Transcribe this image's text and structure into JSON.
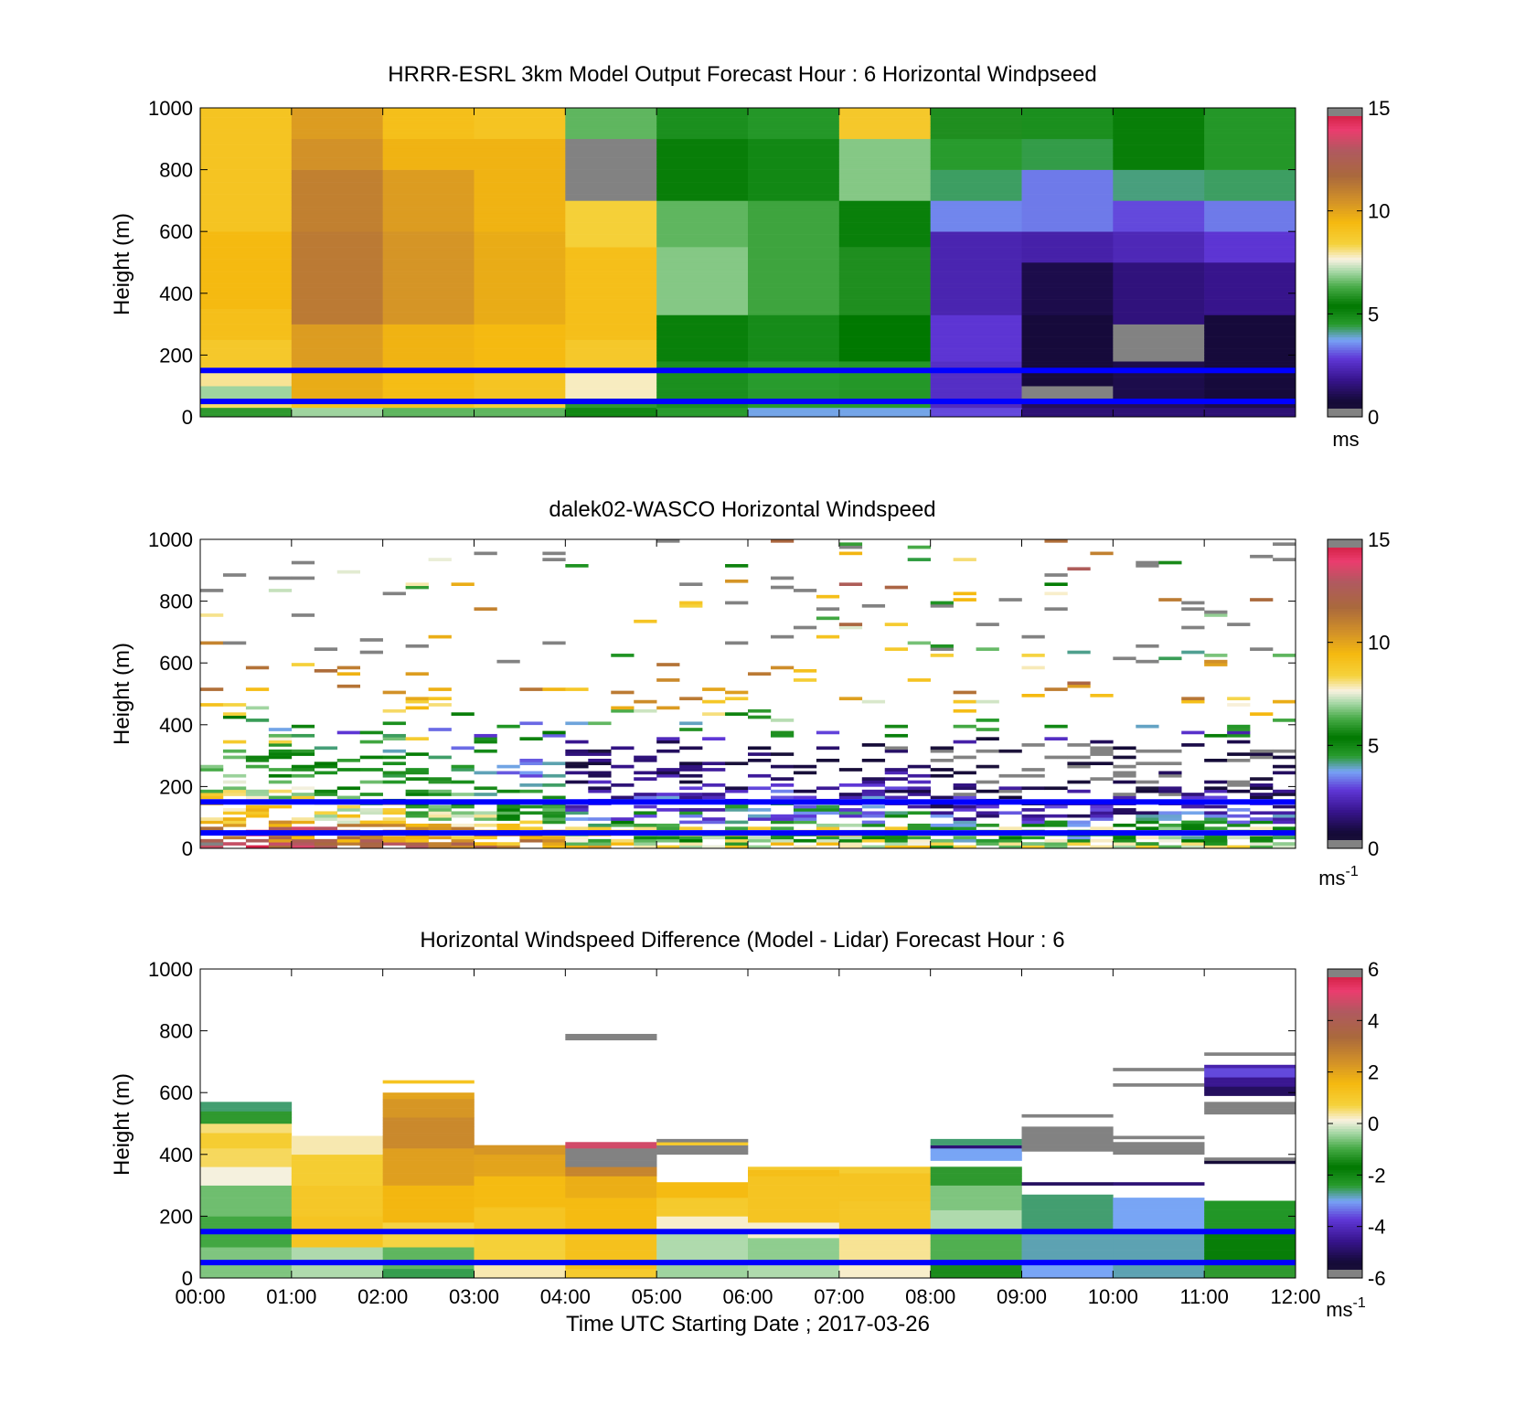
{
  "chart_data": [
    {
      "type": "heatmap",
      "id": "model",
      "title": "HRRR-ESRL 3km Model Output   Forecast Hour : 6 Horizontal Windpseed",
      "xlabel": "",
      "ylabel": "Height (m)",
      "ylim": [
        0,
        1000
      ],
      "yticks": [
        "0",
        "200",
        "400",
        "600",
        "800",
        "1000"
      ],
      "colorbar": {
        "range": [
          0,
          15
        ],
        "ticks": [
          "0",
          "5",
          "10",
          "15"
        ],
        "unit_main": "ms",
        "unit_sup": ""
      },
      "reference_lines_m": [
        50,
        150
      ],
      "columns": [
        [
          [
            0,
            30,
            6.0
          ],
          [
            30,
            60,
            8.2
          ],
          [
            60,
            100,
            7.0
          ],
          [
            100,
            160,
            8.0
          ],
          [
            160,
            250,
            8.8
          ],
          [
            250,
            350,
            9.2
          ],
          [
            350,
            600,
            9.4
          ],
          [
            600,
            1000,
            9.0
          ]
        ],
        [
          [
            0,
            30,
            7.0
          ],
          [
            30,
            60,
            9.0
          ],
          [
            60,
            160,
            9.8
          ],
          [
            160,
            300,
            10.2
          ],
          [
            300,
            600,
            11.2
          ],
          [
            600,
            800,
            11.0
          ],
          [
            800,
            900,
            10.5
          ],
          [
            900,
            1000,
            10.2
          ]
        ],
        [
          [
            0,
            30,
            6.5
          ],
          [
            30,
            60,
            9.0
          ],
          [
            60,
            160,
            9.3
          ],
          [
            160,
            300,
            9.6
          ],
          [
            300,
            600,
            10.4
          ],
          [
            600,
            800,
            10.2
          ],
          [
            800,
            900,
            9.6
          ],
          [
            900,
            1000,
            9.2
          ]
        ],
        [
          [
            0,
            30,
            6.5
          ],
          [
            30,
            60,
            8.5
          ],
          [
            60,
            160,
            9.0
          ],
          [
            160,
            300,
            9.4
          ],
          [
            300,
            600,
            9.8
          ],
          [
            600,
            900,
            9.6
          ],
          [
            900,
            1000,
            9.0
          ]
        ],
        [
          [
            0,
            30,
            5.0
          ],
          [
            30,
            60,
            6.0
          ],
          [
            60,
            160,
            7.8
          ],
          [
            160,
            250,
            8.8
          ],
          [
            250,
            550,
            9.2
          ],
          [
            550,
            700,
            8.5
          ],
          [
            700,
            900,
            -1
          ],
          [
            900,
            1000,
            6.5
          ]
        ],
        [
          [
            0,
            30,
            4.5
          ],
          [
            30,
            60,
            4.8
          ],
          [
            60,
            180,
            4.8
          ],
          [
            180,
            330,
            5.2
          ],
          [
            330,
            550,
            6.8
          ],
          [
            550,
            700,
            6.5
          ],
          [
            700,
            900,
            5.5
          ],
          [
            900,
            1000,
            4.8
          ]
        ],
        [
          [
            0,
            30,
            3.8
          ],
          [
            30,
            60,
            4.5
          ],
          [
            60,
            180,
            4.5
          ],
          [
            180,
            330,
            4.9
          ],
          [
            330,
            550,
            6.2
          ],
          [
            550,
            700,
            6.2
          ],
          [
            700,
            900,
            5.0
          ],
          [
            900,
            1000,
            4.6
          ]
        ],
        [
          [
            0,
            30,
            3.8
          ],
          [
            30,
            60,
            4.5
          ],
          [
            60,
            180,
            4.6
          ],
          [
            180,
            330,
            5.4
          ],
          [
            330,
            550,
            5.8
          ],
          [
            550,
            700,
            5.2
          ],
          [
            700,
            900,
            6.8
          ],
          [
            900,
            1000,
            8.8
          ]
        ],
        [
          [
            0,
            30,
            3.0
          ],
          [
            30,
            60,
            2.5
          ],
          [
            60,
            180,
            2.6
          ],
          [
            180,
            330,
            2.8
          ],
          [
            330,
            600,
            2.3
          ],
          [
            600,
            700,
            3.5
          ],
          [
            700,
            800,
            4.3
          ],
          [
            800,
            900,
            4.5
          ],
          [
            900,
            1000,
            5.8
          ]
        ],
        [
          [
            0,
            30,
            1.5
          ],
          [
            30,
            60,
            1.2
          ],
          [
            60,
            100,
            -1
          ],
          [
            100,
            330,
            0.8
          ],
          [
            330,
            500,
            1.0
          ],
          [
            500,
            600,
            2.2
          ],
          [
            600,
            800,
            3.4
          ],
          [
            800,
            900,
            4.4
          ],
          [
            900,
            1000,
            4.8
          ]
        ],
        [
          [
            0,
            30,
            1.5
          ],
          [
            30,
            60,
            1.2
          ],
          [
            60,
            180,
            1.0
          ],
          [
            180,
            300,
            -1
          ],
          [
            300,
            500,
            1.6
          ],
          [
            500,
            600,
            2.4
          ],
          [
            600,
            700,
            3.0
          ],
          [
            700,
            800,
            4.2
          ],
          [
            800,
            1000,
            5.5
          ]
        ],
        [
          [
            0,
            30,
            1.5
          ],
          [
            30,
            60,
            1.0
          ],
          [
            60,
            330,
            0.8
          ],
          [
            330,
            500,
            1.8
          ],
          [
            500,
            600,
            2.8
          ],
          [
            600,
            700,
            3.4
          ],
          [
            700,
            800,
            4.3
          ],
          [
            800,
            1000,
            4.6
          ]
        ]
      ]
    },
    {
      "type": "heatmap",
      "id": "lidar",
      "title": "dalek02-WASCO  Horizontal Windspeed",
      "xlabel": "",
      "ylabel": "Height (m)",
      "ylim": [
        0,
        1000
      ],
      "yticks": [
        "0",
        "200",
        "400",
        "600",
        "800",
        "1000"
      ],
      "colorbar": {
        "range": [
          0,
          15
        ],
        "ticks": [
          "0",
          "5",
          "10",
          "15"
        ],
        "unit_main": "ms",
        "unit_sup": "-1"
      },
      "reference_lines_m": [
        50,
        150
      ],
      "profiles": [
        [
          0,
          60,
          9.5,
          1.8
        ],
        [
          30,
          80,
          7.0,
          2.2
        ],
        [
          60,
          60,
          8.5,
          2.0
        ],
        [
          90,
          50,
          4.5,
          1.6
        ],
        [
          120,
          50,
          4.0,
          1.4
        ],
        [
          150,
          40,
          3.6,
          1.4
        ],
        [
          180,
          40,
          2.8,
          1.4
        ],
        [
          210,
          30,
          2.0,
          1.2
        ],
        [
          240,
          35,
          2.0,
          1.2
        ],
        [
          270,
          30,
          1.5,
          1.0
        ],
        [
          300,
          20,
          1.8,
          1.0
        ],
        [
          330,
          20,
          1.2,
          1.0
        ],
        [
          360,
          15,
          4.5,
          2.0
        ],
        [
          390,
          10,
          4.0,
          2.5
        ],
        [
          420,
          10,
          6.5,
          2.5
        ],
        [
          450,
          10,
          8.0,
          2.0
        ],
        [
          480,
          10,
          9.5,
          2.0
        ],
        [
          510,
          10,
          10.5,
          2.0
        ],
        [
          540,
          5,
          10.0,
          2.0
        ],
        [
          570,
          5,
          10.2,
          2.0
        ],
        [
          600,
          5,
          9.5,
          2.2
        ]
      ]
    },
    {
      "type": "heatmap",
      "id": "difference",
      "title": "Horizontal Windspeed Difference (Model - Lidar) Forecast Hour : 6",
      "xlabel": "Time UTC  Starting Date ; 2017-03-26",
      "ylabel": "Height (m)",
      "ylim": [
        0,
        1000
      ],
      "yticks": [
        "0",
        "200",
        "400",
        "600",
        "800",
        "1000"
      ],
      "xticks": [
        "00:00",
        "01:00",
        "02:00",
        "03:00",
        "04:00",
        "05:00",
        "06:00",
        "07:00",
        "08:00",
        "09:00",
        "10:00",
        "11:00",
        "12:00"
      ],
      "colorbar": {
        "range": [
          -6,
          6
        ],
        "ticks": [
          "-6",
          "-4",
          "-2",
          "0",
          "2",
          "4",
          "6"
        ],
        "unit_main": "ms",
        "unit_sup": "-1"
      },
      "reference_lines_m": [
        50,
        150
      ],
      "columns": [
        [
          [
            0,
            100,
            -0.6
          ],
          [
            100,
            200,
            -1.0
          ],
          [
            200,
            300,
            -0.7
          ],
          [
            300,
            360,
            0.1
          ],
          [
            360,
            420,
            0.6
          ],
          [
            420,
            470,
            0.9
          ],
          [
            470,
            500,
            0.5
          ],
          [
            500,
            540,
            -1.2
          ],
          [
            540,
            570,
            -2.6
          ]
        ],
        [
          [
            0,
            100,
            -0.3
          ],
          [
            100,
            200,
            1.2
          ],
          [
            200,
            300,
            1.1
          ],
          [
            300,
            400,
            0.9
          ],
          [
            400,
            460,
            0.3
          ]
        ],
        [
          [
            0,
            30,
            -2.5
          ],
          [
            30,
            100,
            -0.8
          ],
          [
            100,
            180,
            0.7
          ],
          [
            180,
            300,
            1.6
          ],
          [
            300,
            420,
            2.1
          ],
          [
            420,
            520,
            2.6
          ],
          [
            520,
            580,
            2.3
          ],
          [
            580,
            600,
            2.0
          ],
          [
            630,
            640,
            1.2
          ]
        ],
        [
          [
            0,
            50,
            0.3
          ],
          [
            50,
            150,
            0.8
          ],
          [
            150,
            230,
            1.2
          ],
          [
            230,
            330,
            1.5
          ],
          [
            330,
            400,
            2.0
          ],
          [
            400,
            430,
            2.3
          ]
        ],
        [
          [
            0,
            30,
            1.0
          ],
          [
            30,
            150,
            1.3
          ],
          [
            150,
            260,
            1.5
          ],
          [
            260,
            330,
            1.8
          ],
          [
            330,
            360,
            2.7
          ],
          [
            360,
            420,
            -7
          ],
          [
            420,
            440,
            4.8
          ],
          [
            770,
            780,
            -7
          ],
          [
            780,
            790,
            -7
          ]
        ],
        [
          [
            0,
            50,
            -0.4
          ],
          [
            50,
            150,
            -0.3
          ],
          [
            150,
            200,
            0.2
          ],
          [
            200,
            260,
            1.0
          ],
          [
            260,
            310,
            1.5
          ],
          [
            400,
            430,
            -7
          ],
          [
            430,
            440,
            1.0
          ],
          [
            440,
            450,
            -7
          ]
        ],
        [
          [
            0,
            50,
            -0.3
          ],
          [
            50,
            130,
            -0.5
          ],
          [
            130,
            180,
            0.2
          ],
          [
            180,
            330,
            1.2
          ],
          [
            330,
            350,
            1.4
          ],
          [
            350,
            360,
            1.0
          ]
        ],
        [
          [
            0,
            50,
            0.2
          ],
          [
            50,
            150,
            0.4
          ],
          [
            150,
            250,
            1.1
          ],
          [
            250,
            340,
            1.2
          ],
          [
            340,
            360,
            0.9
          ]
        ],
        [
          [
            0,
            50,
            -1.4
          ],
          [
            50,
            150,
            -0.9
          ],
          [
            150,
            220,
            -0.3
          ],
          [
            220,
            300,
            -0.6
          ],
          [
            300,
            360,
            -1.2
          ],
          [
            380,
            420,
            -3.0
          ],
          [
            420,
            430,
            -4.8
          ],
          [
            430,
            450,
            -2.6
          ]
        ],
        [
          [
            0,
            50,
            -3.0
          ],
          [
            50,
            150,
            -2.8
          ],
          [
            150,
            270,
            -2.6
          ],
          [
            300,
            310,
            -5.0
          ],
          [
            410,
            490,
            -7
          ],
          [
            520,
            530,
            -7
          ]
        ],
        [
          [
            0,
            50,
            -2.8
          ],
          [
            50,
            150,
            -2.8
          ],
          [
            150,
            260,
            -3.0
          ],
          [
            300,
            310,
            -4.8
          ],
          [
            400,
            440,
            -7
          ],
          [
            450,
            460,
            -7
          ],
          [
            620,
            630,
            -7
          ],
          [
            670,
            680,
            -7
          ]
        ],
        [
          [
            0,
            50,
            -1.2
          ],
          [
            50,
            150,
            -1.6
          ],
          [
            150,
            250,
            -2.3
          ],
          [
            370,
            380,
            -5.5
          ],
          [
            380,
            390,
            -7
          ],
          [
            530,
            570,
            -7
          ],
          [
            590,
            620,
            -5.0
          ],
          [
            620,
            650,
            -4.5
          ],
          [
            650,
            680,
            -3.6
          ],
          [
            680,
            690,
            -4.2
          ],
          [
            720,
            730,
            -7
          ]
        ]
      ]
    }
  ]
}
